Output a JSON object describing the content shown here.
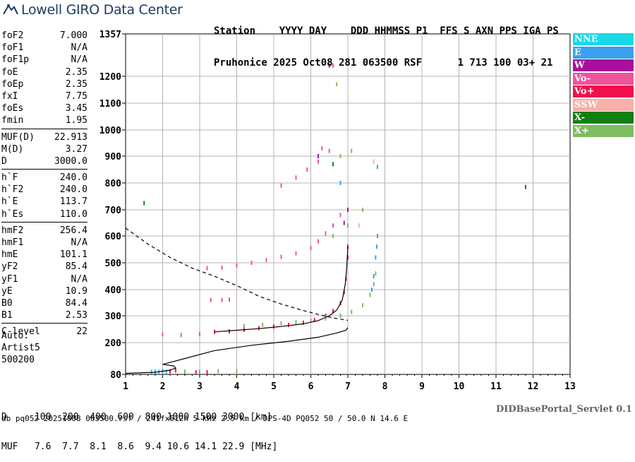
{
  "logo": {
    "text": "Lowell GIRO Data Center"
  },
  "header": {
    "line1": "Station    YYYY DAY    DDD HHMMSS P1  FFS S AXN PPS IGA PS",
    "line2": "Pruhonice 2025 Oct08 281 063500 RSF      1 713 100 03+ 21"
  },
  "params": {
    "group1": [
      {
        "name": "foF2",
        "value": "7.000"
      },
      {
        "name": "foF1",
        "value": "N/A"
      },
      {
        "name": "foF1p",
        "value": "N/A"
      },
      {
        "name": "foE",
        "value": "2.35"
      },
      {
        "name": "foEp",
        "value": "2.35"
      },
      {
        "name": "fxI",
        "value": "7.75"
      },
      {
        "name": "foEs",
        "value": "3.45"
      },
      {
        "name": "fmin",
        "value": "1.95"
      }
    ],
    "group2": [
      {
        "name": "MUF(D)",
        "value": "22.913"
      },
      {
        "name": "M(D)",
        "value": "3.27"
      },
      {
        "name": "D",
        "value": "3000.0"
      }
    ],
    "group3": [
      {
        "name": "h`F",
        "value": "240.0"
      },
      {
        "name": "h`F2",
        "value": "240.0"
      },
      {
        "name": "h`E",
        "value": "113.7"
      },
      {
        "name": "h`Es",
        "value": "110.0"
      }
    ],
    "group4": [
      {
        "name": "hmF2",
        "value": "256.4"
      },
      {
        "name": "hmF1",
        "value": "N/A"
      },
      {
        "name": "hmE",
        "value": "101.1"
      },
      {
        "name": "yF2",
        "value": "85.4"
      },
      {
        "name": "yF1",
        "value": "N/A"
      },
      {
        "name": "yE",
        "value": "10.9"
      },
      {
        "name": "B0",
        "value": "84.4"
      },
      {
        "name": "B1",
        "value": "2.53"
      }
    ],
    "group5": [
      {
        "name": "C-level",
        "value": "22"
      }
    ]
  },
  "auto": {
    "line1": "Auto:",
    "line2": "Artist5",
    "line3": "500200"
  },
  "dmuf": {
    "d_line": "D     100  200  400  600  800 1000 1500 3000 [km]",
    "muf_line": "MUF   7.6  7.7  8.1  8.6  9.4 10.6 14.1 22.9 [MHz]"
  },
  "portal": "DIDBasePortal_Servlet 0.1",
  "footer": "db pq052 20251008 063500.rsf / 241fx512h 5 kHz 2.5 km / DPS-4D PQ052 50 / 50.0 N 14.6 E",
  "legend": [
    {
      "label": "NNE",
      "color": "#1ad8e8"
    },
    {
      "label": "E",
      "color": "#3aa0f0"
    },
    {
      "label": "W",
      "color": "#a8109c"
    },
    {
      "label": "Vo-",
      "color": "#f0549c"
    },
    {
      "label": "Vo+",
      "color": "#f0104c"
    },
    {
      "label": "SSW",
      "color": "#f8b0a8"
    },
    {
      "label": "X-",
      "color": "#108010"
    },
    {
      "label": "X+",
      "color": "#80bc60"
    }
  ],
  "chart_data": {
    "type": "scatter",
    "xlim": [
      1,
      13
    ],
    "ylim": [
      80,
      1357
    ],
    "x_ticks": [
      1,
      2,
      3,
      4,
      5,
      6,
      7,
      8,
      9,
      10,
      11,
      12,
      13
    ],
    "y_ticks": [
      80,
      200,
      300,
      400,
      500,
      600,
      700,
      800,
      900,
      1000,
      1100,
      1200,
      1357
    ],
    "grid": true,
    "series": [
      {
        "name": "Vo+",
        "color": "#f0104c",
        "points": [
          [
            3.4,
            240
          ],
          [
            3.8,
            242
          ],
          [
            4.2,
            248
          ],
          [
            4.6,
            254
          ],
          [
            5.0,
            260
          ],
          [
            5.4,
            266
          ],
          [
            5.8,
            274
          ],
          [
            6.1,
            284
          ],
          [
            6.4,
            300
          ],
          [
            6.6,
            318
          ],
          [
            6.8,
            348
          ],
          [
            6.9,
            390
          ],
          [
            6.95,
            440
          ],
          [
            7.0,
            520
          ],
          [
            7.0,
            560
          ],
          [
            2.35,
            95
          ],
          [
            2.2,
            92
          ],
          [
            2.6,
            90
          ],
          [
            2.9,
            88
          ],
          [
            3.2,
            88
          ]
        ]
      },
      {
        "name": "Vo-",
        "color": "#f0549c",
        "points": [
          [
            2.0,
            230
          ],
          [
            2.5,
            228
          ],
          [
            3.0,
            232
          ],
          [
            3.2,
            480
          ],
          [
            3.6,
            482
          ],
          [
            4.0,
            490
          ],
          [
            4.4,
            500
          ],
          [
            4.8,
            510
          ],
          [
            5.2,
            522
          ],
          [
            5.6,
            535
          ],
          [
            6.0,
            555
          ],
          [
            6.2,
            580
          ],
          [
            6.4,
            610
          ],
          [
            6.6,
            640
          ],
          [
            6.8,
            680
          ],
          [
            3.3,
            360
          ],
          [
            3.6,
            360
          ],
          [
            3.8,
            362
          ],
          [
            5.2,
            790
          ],
          [
            5.6,
            820
          ],
          [
            5.9,
            850
          ],
          [
            6.2,
            880
          ],
          [
            6.5,
            920
          ],
          [
            6.6,
            1240
          ],
          [
            6.3,
            930
          ]
        ]
      },
      {
        "name": "W",
        "color": "#a8109c",
        "points": [
          [
            6.5,
            1240
          ],
          [
            6.2,
            900
          ],
          [
            7.0,
            700
          ],
          [
            6.9,
            650
          ]
        ]
      },
      {
        "name": "X+",
        "color": "#80bc60",
        "points": [
          [
            4.2,
            262
          ],
          [
            4.7,
            266
          ],
          [
            5.2,
            272
          ],
          [
            5.6,
            276
          ],
          [
            6.0,
            282
          ],
          [
            6.4,
            290
          ],
          [
            6.8,
            300
          ],
          [
            7.1,
            315
          ],
          [
            7.4,
            340
          ],
          [
            7.6,
            380
          ],
          [
            7.7,
            420
          ],
          [
            7.75,
            460
          ],
          [
            6.6,
            600
          ],
          [
            7.0,
            640
          ],
          [
            7.4,
            700
          ],
          [
            6.8,
            900
          ],
          [
            7.1,
            920
          ],
          [
            2.6,
            90
          ],
          [
            3.0,
            90
          ],
          [
            3.5,
            92
          ],
          [
            4.0,
            92
          ],
          [
            6.7,
            1170
          ]
        ]
      },
      {
        "name": "X-",
        "color": "#108010",
        "points": [
          [
            1.5,
            725
          ],
          [
            11.8,
            785
          ],
          [
            6.6,
            870
          ]
        ]
      },
      {
        "name": "E",
        "color": "#3aa0f0",
        "points": [
          [
            7.65,
            400
          ],
          [
            7.7,
            450
          ],
          [
            7.75,
            520
          ],
          [
            7.78,
            560
          ],
          [
            7.8,
            600
          ],
          [
            7.8,
            860
          ],
          [
            6.8,
            800
          ],
          [
            1.8,
            90
          ],
          [
            2.0,
            92
          ]
        ]
      },
      {
        "name": "NNE",
        "color": "#1ad8e8",
        "points": [
          [
            1.7,
            90
          ],
          [
            1.9,
            90
          ],
          [
            2.1,
            90
          ]
        ]
      },
      {
        "name": "SSW",
        "color": "#f8b0a8",
        "points": [
          [
            7.3,
            640
          ],
          [
            7.7,
            880
          ]
        ]
      }
    ],
    "profile": {
      "name": "true-height profile",
      "points": [
        [
          1.0,
          84
        ],
        [
          1.8,
          88
        ],
        [
          2.2,
          96
        ],
        [
          2.35,
          104
        ],
        [
          2.3,
          112
        ],
        [
          2.0,
          118
        ],
        [
          2.6,
          140
        ],
        [
          3.4,
          170
        ],
        [
          4.4,
          190
        ],
        [
          5.4,
          205
        ],
        [
          6.2,
          220
        ],
        [
          6.7,
          236
        ],
        [
          6.95,
          246
        ],
        [
          7.0,
          256
        ]
      ]
    },
    "virtual_height_curve": {
      "name": "virtual height (ordinary)",
      "points": [
        [
          3.4,
          240
        ],
        [
          4.0,
          246
        ],
        [
          4.6,
          252
        ],
        [
          5.2,
          260
        ],
        [
          5.8,
          270
        ],
        [
          6.2,
          282
        ],
        [
          6.5,
          300
        ],
        [
          6.7,
          322
        ],
        [
          6.85,
          360
        ],
        [
          6.93,
          420
        ],
        [
          6.97,
          480
        ],
        [
          7.0,
          560
        ]
      ]
    },
    "dashed_curve": {
      "name": "",
      "points": [
        [
          1.0,
          630
        ],
        [
          1.6,
          570
        ],
        [
          2.2,
          520
        ],
        [
          2.8,
          480
        ],
        [
          3.4,
          450
        ],
        [
          4.0,
          415
        ],
        [
          4.6,
          375
        ],
        [
          5.2,
          345
        ],
        [
          5.8,
          320
        ],
        [
          6.2,
          305
        ],
        [
          6.6,
          292
        ],
        [
          7.0,
          283
        ]
      ]
    }
  }
}
